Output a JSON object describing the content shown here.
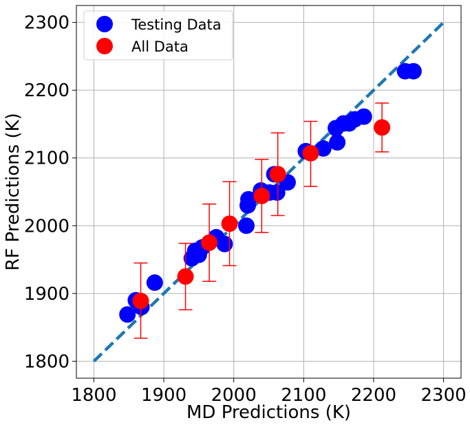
{
  "chart_data": {
    "type": "scatter",
    "xlabel": "MD Predictions (K)",
    "ylabel": "RF Predictions (K)",
    "xlim": [
      1775,
      2325
    ],
    "ylim": [
      1775,
      2325
    ],
    "xticks": [
      "1800",
      "1900",
      "2000",
      "2100",
      "2200",
      "2300"
    ],
    "yticks": [
      "1800",
      "1900",
      "2000",
      "2100",
      "2200",
      "2300"
    ],
    "grid": true,
    "legend_position": "top-left",
    "reference_line": {
      "x": [
        1800,
        2300
      ],
      "y": [
        1800,
        2300
      ],
      "style": "dashed",
      "color": "#1f77b4"
    },
    "series": [
      {
        "name": "Testing Data",
        "color": "#0000ff",
        "points": [
          {
            "x": 1848,
            "y": 1869
          },
          {
            "x": 1860,
            "y": 1890
          },
          {
            "x": 1868,
            "y": 1880
          },
          {
            "x": 1887,
            "y": 1916
          },
          {
            "x": 1940,
            "y": 1952
          },
          {
            "x": 1945,
            "y": 1963
          },
          {
            "x": 1950,
            "y": 1957
          },
          {
            "x": 1955,
            "y": 1968
          },
          {
            "x": 1975,
            "y": 1983
          },
          {
            "x": 1987,
            "y": 1973
          },
          {
            "x": 2018,
            "y": 2000
          },
          {
            "x": 2020,
            "y": 2030
          },
          {
            "x": 2021,
            "y": 2039
          },
          {
            "x": 2039,
            "y": 2052
          },
          {
            "x": 2051,
            "y": 2049
          },
          {
            "x": 2058,
            "y": 2076
          },
          {
            "x": 2062,
            "y": 2049
          },
          {
            "x": 2077,
            "y": 2064
          },
          {
            "x": 2103,
            "y": 2110
          },
          {
            "x": 2128,
            "y": 2114
          },
          {
            "x": 2146,
            "y": 2144
          },
          {
            "x": 2148,
            "y": 2123
          },
          {
            "x": 2157,
            "y": 2151
          },
          {
            "x": 2165,
            "y": 2151
          },
          {
            "x": 2173,
            "y": 2157
          },
          {
            "x": 2186,
            "y": 2161
          },
          {
            "x": 2245,
            "y": 2228
          },
          {
            "x": 2257,
            "y": 2228
          }
        ]
      },
      {
        "name": "All Data",
        "color": "#ff0000",
        "points": [
          {
            "x": 1867,
            "y": 1889,
            "ylow": 1834,
            "yhigh": 1945
          },
          {
            "x": 1931,
            "y": 1925,
            "ylow": 1876,
            "yhigh": 1974
          },
          {
            "x": 1965,
            "y": 1975,
            "ylow": 1918,
            "yhigh": 2032
          },
          {
            "x": 1994,
            "y": 2003,
            "ylow": 1941,
            "yhigh": 2065
          },
          {
            "x": 2040,
            "y": 2044,
            "ylow": 1990,
            "yhigh": 2098
          },
          {
            "x": 2063,
            "y": 2076,
            "ylow": 2015,
            "yhigh": 2137
          },
          {
            "x": 2110,
            "y": 2107,
            "ylow": 2058,
            "yhigh": 2154
          },
          {
            "x": 2212,
            "y": 2145,
            "ylow": 2109,
            "yhigh": 2181
          }
        ]
      }
    ]
  }
}
